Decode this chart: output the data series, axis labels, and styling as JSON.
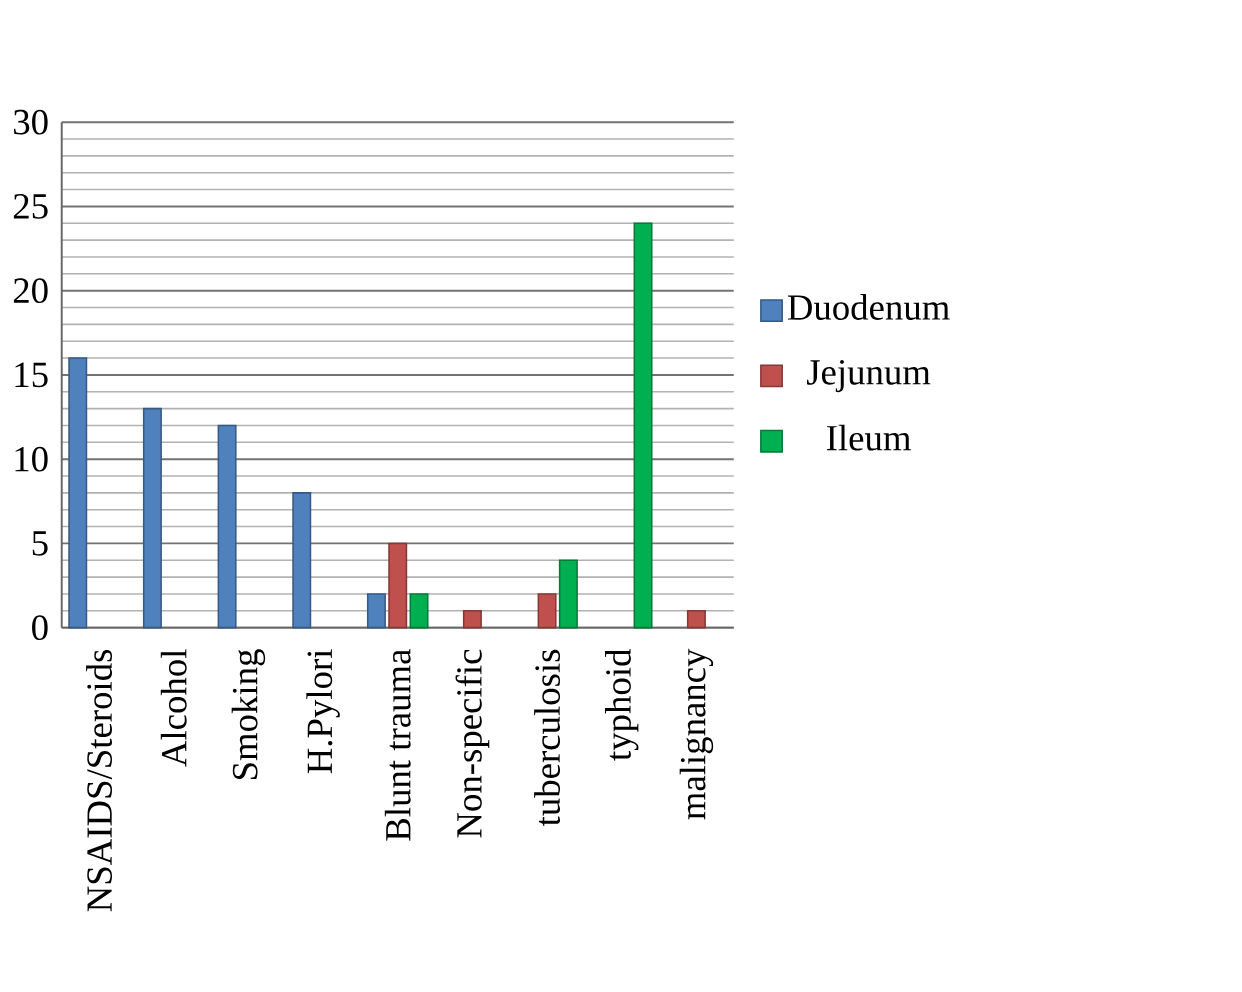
{
  "chart_data": {
    "type": "bar",
    "categories": [
      "NSAIDS/Steroids",
      "Alcohol",
      "Smoking",
      "H.Pylori",
      "Blunt trauma",
      "Non-specific",
      "tuberculosis",
      "typhoid",
      "malignancy"
    ],
    "series": [
      {
        "name": "Duodenum",
        "color": "#4f81bd",
        "values": [
          16,
          13,
          12,
          8,
          2,
          null,
          null,
          null,
          null
        ]
      },
      {
        "name": "Jejunum",
        "color": "#c0504d",
        "values": [
          null,
          null,
          null,
          null,
          5,
          1,
          2,
          null,
          1
        ]
      },
      {
        "name": "Ileum",
        "color": "#00b050",
        "values": [
          null,
          null,
          null,
          null,
          2,
          null,
          4,
          24,
          null
        ]
      }
    ],
    "ylim": [
      0,
      30
    ],
    "yticks": [
      0,
      5,
      10,
      15,
      20,
      25,
      30
    ],
    "grid": "y",
    "legend": "right"
  }
}
